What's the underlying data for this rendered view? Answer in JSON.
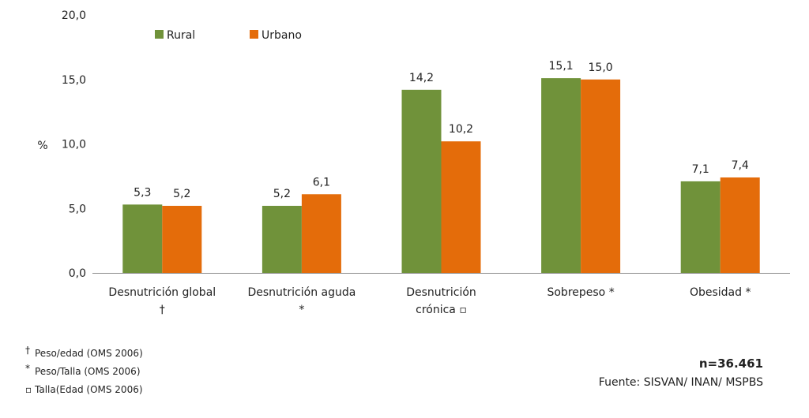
{
  "chart_data": {
    "type": "bar",
    "title": "",
    "ylabel": "%",
    "xlabel": "",
    "ylim": [
      0,
      20
    ],
    "yticks": [
      "0,0",
      "5,0",
      "10,0",
      "15,0",
      "20,0"
    ],
    "ytick_values": [
      0,
      5,
      10,
      15,
      20
    ],
    "grid": false,
    "legend_position": "top-left",
    "categories": [
      {
        "lines": [
          "Desnutrición global",
          "†"
        ]
      },
      {
        "lines": [
          "Desnutrición aguda",
          "*"
        ]
      },
      {
        "lines": [
          "Desnutrición",
          "crónica ▫"
        ]
      },
      {
        "lines": [
          "Sobrepeso  *"
        ]
      },
      {
        "lines": [
          "Obesidad  *"
        ]
      }
    ],
    "series": [
      {
        "name": "Rural",
        "color": "#70923a",
        "values": [
          5.3,
          5.2,
          14.2,
          15.1,
          7.1
        ],
        "labels": [
          "5,3",
          "5,2",
          "14,2",
          "15,1",
          "7,1"
        ]
      },
      {
        "name": "Urbano",
        "color": "#e46c0a",
        "values": [
          5.2,
          6.1,
          10.2,
          15.0,
          7.4
        ],
        "labels": [
          "5,2",
          "6,1",
          "10,2",
          "15,0",
          "7,4"
        ]
      }
    ]
  },
  "footnotes": [
    {
      "symbol": "†",
      "text": "Peso/edad (OMS 2006)"
    },
    {
      "symbol": "*",
      "text": "Peso/Talla (OMS 2006)"
    },
    {
      "symbol": "▫",
      "text": "Talla(Edad (OMS 2006)"
    }
  ],
  "sample_size": "n=36.461",
  "source": "Fuente:  SISVAN/ INAN/ MSPBS"
}
